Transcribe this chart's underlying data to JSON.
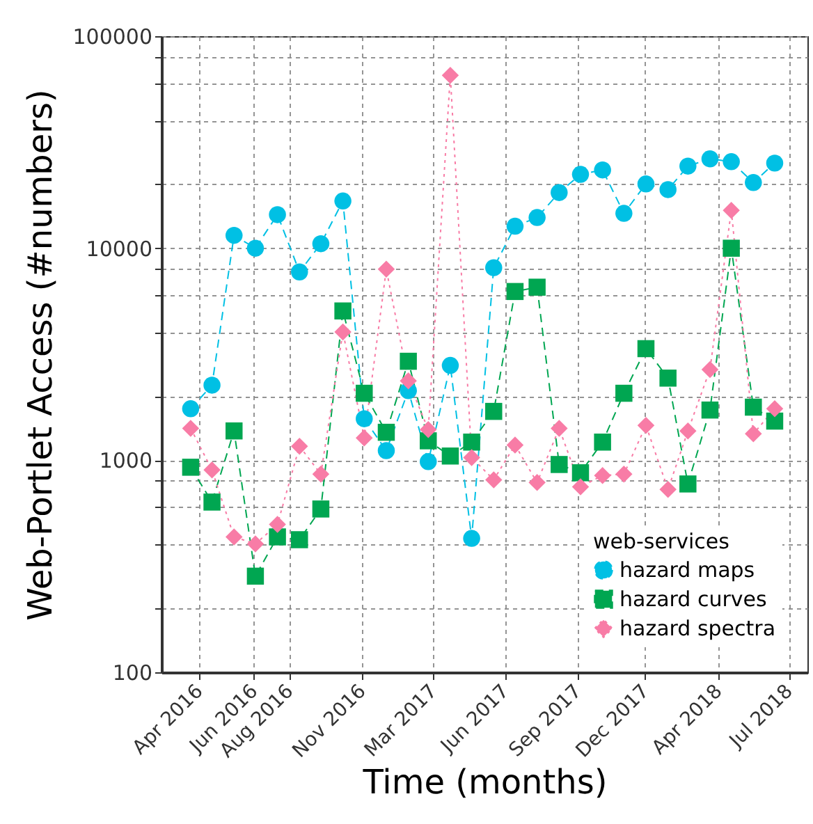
{
  "chart_data": {
    "type": "line",
    "xlabel": "Time (months)",
    "ylabel": "Web-Portlet Access (#numbers)",
    "legend_title": "web-services",
    "x": [
      "2016-04",
      "2016-05",
      "2016-06",
      "2016-07",
      "2016-08",
      "2016-09",
      "2016-10",
      "2016-11",
      "2016-12",
      "2017-01",
      "2017-02",
      "2017-03",
      "2017-04",
      "2017-05",
      "2017-06",
      "2017-07",
      "2017-08",
      "2017-09",
      "2017-10",
      "2017-11",
      "2017-12",
      "2018-01",
      "2018-02",
      "2018-03",
      "2018-04",
      "2018-05",
      "2018-06",
      "2018-07"
    ],
    "series": [
      {
        "name": "hazard maps",
        "color": "#00c0e4",
        "marker": "circle",
        "line_style": "dashed",
        "values": [
          1750,
          2260,
          11500,
          10000,
          14400,
          7730,
          10500,
          16700,
          1570,
          1110,
          2130,
          985,
          2800,
          428,
          8090,
          12700,
          13950,
          18300,
          22300,
          23400,
          14600,
          20100,
          18900,
          24400,
          26400,
          25600,
          20400,
          25200
        ]
      },
      {
        "name": "hazard curves",
        "color": "#00a651",
        "marker": "square",
        "line_style": "dashed",
        "values": [
          927,
          635,
          1375,
          284,
          435,
          422,
          589,
          5060,
          2070,
          1355,
          2930,
          1235,
          1047,
          1218,
          1700,
          6250,
          6550,
          955,
          873,
          1218,
          2070,
          3360,
          2440,
          773,
          1725,
          10000,
          1780,
          1530
        ]
      },
      {
        "name": "hazard spectra",
        "color": "#f87ca6",
        "marker": "diamond",
        "line_style": "dotted",
        "values": [
          1415,
          900,
          435,
          403,
          498,
          1164,
          860,
          4030,
          1275,
          7960,
          2370,
          1395,
          65400,
          1030,
          809,
          1180,
          785,
          1415,
          750,
          847,
          860,
          1460,
          728,
          1375,
          2680,
          15100,
          1333,
          1750
        ]
      }
    ],
    "log": "y",
    "ylim": [
      100,
      100000
    ],
    "yticks": [
      100,
      {
        "value": 200,
        "label": null
      },
      {
        "value": 400,
        "label": null
      },
      {
        "value": 600,
        "label": null
      },
      {
        "value": 800,
        "label": null
      },
      1000,
      {
        "value": 2000,
        "label": null
      },
      {
        "value": 4000,
        "label": null
      },
      {
        "value": 6000,
        "label": null
      },
      {
        "value": 8000,
        "label": null
      },
      10000,
      {
        "value": 20000,
        "label": null
      },
      {
        "value": 40000,
        "label": null
      },
      {
        "value": 60000,
        "label": null
      },
      {
        "value": 80000,
        "label": null
      },
      100000
    ],
    "xlim": [
      "2016-02-20",
      "2018-08-16"
    ],
    "xticks": [
      {
        "value": "2016-04-13",
        "label": "Apr 2016"
      },
      {
        "value": "2016-06-29",
        "label": "Jun 2016"
      },
      {
        "value": "2016-08-18",
        "label": "Aug 2016"
      },
      {
        "value": "2016-11-28",
        "label": "Nov 2016"
      },
      {
        "value": "2017-03-08",
        "label": "Mar 2017"
      },
      {
        "value": "2017-06-17",
        "label": "Jun 2017"
      },
      {
        "value": "2017-09-27",
        "label": "Sep 2017"
      },
      {
        "value": "2017-12-31",
        "label": "Dec 2017"
      },
      {
        "value": "2018-04-13",
        "label": "Apr 2018"
      },
      {
        "value": "2018-07-21",
        "label": "Jul 2018"
      }
    ],
    "grid": true,
    "legend": "bottom right"
  }
}
